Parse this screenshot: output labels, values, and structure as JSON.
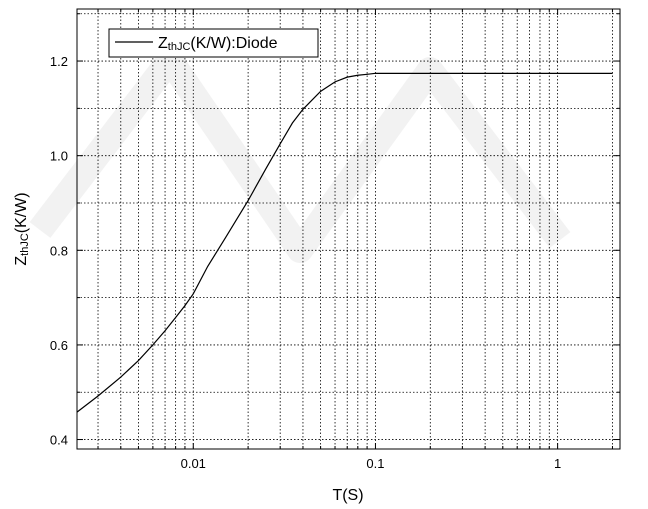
{
  "chart_data": {
    "type": "line",
    "x_scale": "log",
    "xlim": [
      0.0023,
      2.2
    ],
    "ylim": [
      0.38,
      1.31
    ],
    "xticks": [
      {
        "value": 0.01,
        "label": "0.01"
      },
      {
        "value": 0.1,
        "label": "0.1"
      },
      {
        "value": 1,
        "label": "1"
      }
    ],
    "yticks": [
      {
        "value": 0.4,
        "label": "0.4"
      },
      {
        "value": 0.6,
        "label": "0.6"
      },
      {
        "value": 0.8,
        "label": "0.8"
      },
      {
        "value": 1.0,
        "label": "1.0"
      },
      {
        "value": 1.2,
        "label": "1.2"
      }
    ],
    "xlabel": "T(S)",
    "ylabel": {
      "main": "Z",
      "sub": "thJC",
      "rest": "(K/W)"
    },
    "grid": true,
    "legend_position": "top-left",
    "series": [
      {
        "name": {
          "main": "Z",
          "sub": "thJC",
          "rest": "(K/W):Diode"
        },
        "color": "#000000",
        "x": [
          0.0023,
          0.003,
          0.004,
          0.005,
          0.006,
          0.007,
          0.008,
          0.009,
          0.01,
          0.012,
          0.015,
          0.02,
          0.025,
          0.03,
          0.035,
          0.04,
          0.05,
          0.06,
          0.07,
          0.08,
          0.09,
          0.1,
          0.12,
          0.15,
          0.2,
          0.3,
          0.5,
          1,
          2
        ],
        "y": [
          0.458,
          0.492,
          0.532,
          0.567,
          0.6,
          0.63,
          0.658,
          0.683,
          0.708,
          0.766,
          0.826,
          0.905,
          0.972,
          1.025,
          1.069,
          1.098,
          1.136,
          1.156,
          1.166,
          1.17,
          1.172,
          1.174,
          1.174,
          1.174,
          1.174,
          1.174,
          1.174,
          1.174,
          1.174
        ]
      }
    ]
  }
}
